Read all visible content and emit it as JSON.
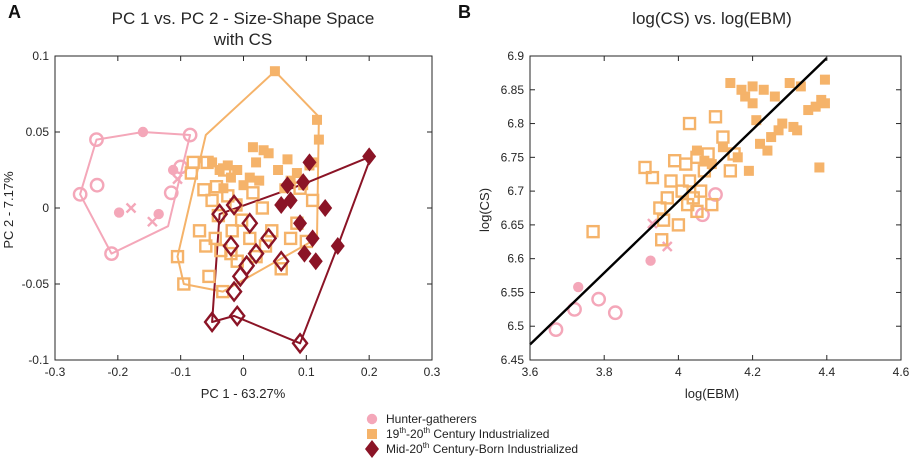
{
  "colors": {
    "hunter": "#F4A7B9",
    "industrial19": "#F5B36A",
    "mid20": "#8B1426",
    "regression": "#000000"
  },
  "legend": {
    "items": [
      {
        "key": "hunter",
        "marker": "circle",
        "text": "Hunter-gatherers"
      },
      {
        "key": "industrial19",
        "marker": "square",
        "text": "19th-20th Century Industrialized",
        "rich": [
          [
            "19"
          ],
          [
            "th",
            "sup"
          ],
          [
            "-20"
          ],
          [
            "th",
            "sup"
          ],
          [
            " Century Industrialized"
          ]
        ]
      },
      {
        "key": "mid20",
        "marker": "diamond",
        "text": "Mid-20th Century-Born Industrialized",
        "rich": [
          [
            "Mid-20"
          ],
          [
            "th",
            "sup"
          ],
          [
            " Century-Born Industrialized"
          ]
        ]
      }
    ]
  },
  "chart_data": [
    {
      "panel": "A",
      "type": "scatter",
      "title": "PC 1 vs. PC 2 - Size-Shape Space",
      "title_line2": "with CS",
      "xlabel": "PC 1 - 63.27%",
      "ylabel": "PC 2 - 7.17%",
      "xlim": [
        -0.3,
        0.3
      ],
      "ylim": [
        -0.1,
        0.1
      ],
      "xticks": [
        -0.3,
        -0.2,
        -0.1,
        0,
        0.1,
        0.2,
        0.3
      ],
      "xtick_labels": [
        "-0.3",
        "-0.2",
        "-0.1",
        "0",
        "0.1",
        "0.2",
        "0.3"
      ],
      "yticks": [
        -0.1,
        -0.05,
        0,
        0.05,
        0.1
      ],
      "ytick_labels": [
        "-0.1",
        "-0.05",
        "0",
        "0.05",
        "0.1"
      ],
      "hulls": [
        {
          "group": "hunter",
          "points": [
            [
              -0.26,
              0.009
            ],
            [
              -0.234,
              0.045
            ],
            [
              -0.16,
              0.05
            ],
            [
              -0.085,
              0.048
            ],
            [
              -0.12,
              -0.012
            ],
            [
              -0.21,
              -0.03
            ]
          ]
        },
        {
          "group": "industrial19",
          "points": [
            [
              -0.105,
              -0.032
            ],
            [
              -0.06,
              0.048
            ],
            [
              0.05,
              0.09
            ],
            [
              0.12,
              0.06
            ],
            [
              0.117,
              -0.02
            ],
            [
              -0.033,
              -0.055
            ],
            [
              -0.095,
              -0.05
            ]
          ]
        },
        {
          "group": "mid20",
          "points": [
            [
              -0.05,
              -0.075
            ],
            [
              -0.038,
              -0.004
            ],
            [
              0.097,
              0.016
            ],
            [
              0.203,
              0.034
            ],
            [
              0.15,
              -0.025
            ],
            [
              0.09,
              -0.089
            ],
            [
              -0.015,
              -0.071
            ]
          ]
        }
      ],
      "series": [
        {
          "name": "Hunter-gatherers",
          "group": "hunter",
          "marker": "circle",
          "open": [
            [
              -0.234,
              0.045
            ],
            [
              -0.233,
              0.015
            ],
            [
              -0.26,
              0.009
            ],
            [
              -0.21,
              -0.03
            ],
            [
              -0.085,
              0.048
            ],
            [
              -0.1,
              0.027
            ],
            [
              -0.115,
              0.01
            ]
          ],
          "filled": [
            [
              -0.16,
              0.05
            ],
            [
              -0.198,
              -0.003
            ],
            [
              -0.135,
              -0.004
            ],
            [
              -0.112,
              0.025
            ]
          ],
          "cross": [
            [
              -0.179,
              -0.0
            ],
            [
              -0.145,
              -0.009
            ],
            [
              -0.105,
              0.019
            ]
          ]
        },
        {
          "name": "19th-20th Century Industrialized",
          "group": "industrial19",
          "marker": "square",
          "open": [
            [
              -0.105,
              -0.032
            ],
            [
              -0.095,
              -0.05
            ],
            [
              -0.083,
              0.023
            ],
            [
              -0.08,
              0.03
            ],
            [
              -0.07,
              -0.015
            ],
            [
              -0.063,
              0.012
            ],
            [
              -0.06,
              -0.025
            ],
            [
              -0.058,
              0.03
            ],
            [
              -0.055,
              -0.045
            ],
            [
              -0.05,
              0.005
            ],
            [
              -0.045,
              -0.02
            ],
            [
              -0.043,
              0.014
            ],
            [
              -0.04,
              -0.005
            ],
            [
              -0.036,
              -0.028
            ],
            [
              -0.033,
              -0.055
            ],
            [
              -0.03,
              0.025
            ],
            [
              -0.025,
              0.008
            ],
            [
              -0.02,
              -0.03
            ],
            [
              -0.018,
              -0.015
            ],
            [
              -0.012,
              0.002
            ],
            [
              -0.01,
              -0.035
            ],
            [
              -0.003,
              -0.008
            ],
            [
              0.01,
              -0.02
            ],
            [
              0.015,
              0.01
            ],
            [
              0.02,
              -0.032
            ],
            [
              0.03,
              0.0
            ],
            [
              0.035,
              -0.025
            ],
            [
              0.045,
              -0.015
            ],
            [
              0.06,
              -0.04
            ],
            [
              0.075,
              -0.02
            ],
            [
              0.085,
              -0.01
            ],
            [
              0.09,
              0.013
            ],
            [
              0.1,
              -0.022
            ],
            [
              0.11,
              0.005
            ]
          ],
          "filled": [
            [
              -0.05,
              0.03
            ],
            [
              -0.038,
              0.025
            ],
            [
              -0.032,
              0.013
            ],
            [
              -0.025,
              0.028
            ],
            [
              -0.02,
              0.02
            ],
            [
              -0.01,
              0.025
            ],
            [
              0.0,
              0.015
            ],
            [
              0.01,
              0.02
            ],
            [
              0.02,
              0.03
            ],
            [
              0.025,
              0.018
            ],
            [
              0.032,
              0.038
            ],
            [
              0.04,
              0.036
            ],
            [
              0.05,
              0.09
            ],
            [
              0.055,
              0.025
            ],
            [
              0.07,
              0.032
            ],
            [
              0.075,
              0.018
            ],
            [
              0.085,
              0.023
            ],
            [
              0.095,
              0.015
            ],
            [
              0.105,
              0.028
            ],
            [
              0.11,
              0.03
            ],
            [
              0.117,
              0.058
            ],
            [
              0.12,
              0.045
            ],
            [
              0.065,
              0.013
            ],
            [
              0.015,
              0.04
            ]
          ]
        },
        {
          "name": "Mid-20th Century-Born Industrialized",
          "group": "mid20",
          "marker": "diamond",
          "open": [
            [
              -0.05,
              -0.075
            ],
            [
              -0.038,
              -0.004
            ],
            [
              -0.015,
              0.002
            ],
            [
              -0.02,
              -0.025
            ],
            [
              -0.005,
              -0.045
            ],
            [
              -0.015,
              -0.055
            ],
            [
              0.005,
              -0.038
            ],
            [
              0.01,
              -0.01
            ],
            [
              0.02,
              -0.03
            ],
            [
              0.04,
              -0.02
            ],
            [
              0.06,
              -0.035
            ],
            [
              0.09,
              -0.089
            ],
            [
              -0.01,
              -0.071
            ]
          ],
          "filled": [
            [
              0.06,
              0.002
            ],
            [
              0.075,
              0.005
            ],
            [
              0.09,
              -0.01
            ],
            [
              0.095,
              0.017
            ],
            [
              0.097,
              -0.03
            ],
            [
              0.11,
              -0.02
            ],
            [
              0.115,
              -0.035
            ],
            [
              0.15,
              -0.025
            ],
            [
              0.13,
              0.0
            ],
            [
              0.2,
              0.034
            ],
            [
              0.07,
              0.015
            ],
            [
              0.105,
              0.03
            ]
          ]
        }
      ]
    },
    {
      "panel": "B",
      "type": "scatter",
      "title": "log(CS) vs. log(EBM)",
      "xlabel": "log(EBM)",
      "ylabel": "log(CS)",
      "xlim": [
        3.6,
        4.6
      ],
      "ylim": [
        6.45,
        6.9
      ],
      "xticks": [
        3.6,
        3.8,
        4.0,
        4.2,
        4.4,
        4.6
      ],
      "xtick_labels": [
        "3.6",
        "3.8",
        "4",
        "4.2",
        "4.4",
        "4.6"
      ],
      "yticks": [
        6.45,
        6.5,
        6.55,
        6.6,
        6.65,
        6.7,
        6.75,
        6.8,
        6.85,
        6.9
      ],
      "ytick_labels": [
        "6.45",
        "6.5",
        "6.55",
        "6.6",
        "6.65",
        "6.7",
        "6.75",
        "6.8",
        "6.85",
        "6.9"
      ],
      "regression_line": {
        "x": [
          3.6,
          4.4
        ],
        "y": [
          6.473,
          6.897
        ]
      },
      "series": [
        {
          "name": "Hunter-gatherers",
          "group": "hunter",
          "marker": "circle",
          "open": [
            [
              3.67,
              6.495
            ],
            [
              3.72,
              6.525
            ],
            [
              3.785,
              6.54
            ],
            [
              3.83,
              6.52
            ],
            [
              4.065,
              6.665
            ],
            [
              4.1,
              6.695
            ]
          ],
          "filled": [
            [
              3.73,
              6.558
            ],
            [
              3.925,
              6.597
            ]
          ],
          "cross": [
            [
              3.93,
              6.652
            ],
            [
              3.97,
              6.618
            ]
          ]
        },
        {
          "name": "19th-20th Century Industrialized",
          "group": "industrial19",
          "marker": "square",
          "open": [
            [
              3.77,
              6.64
            ],
            [
              3.91,
              6.735
            ],
            [
              3.93,
              6.72
            ],
            [
              3.95,
              6.675
            ],
            [
              3.955,
              6.628
            ],
            [
              3.96,
              6.657
            ],
            [
              3.97,
              6.69
            ],
            [
              3.98,
              6.715
            ],
            [
              3.99,
              6.745
            ],
            [
              4.0,
              6.65
            ],
            [
              4.01,
              6.7
            ],
            [
              4.02,
              6.74
            ],
            [
              4.03,
              6.715
            ],
            [
              4.03,
              6.8
            ],
            [
              4.04,
              6.69
            ],
            [
              4.05,
              6.75
            ],
            [
              4.06,
              6.7
            ],
            [
              4.07,
              6.73
            ],
            [
              4.08,
              6.755
            ],
            [
              4.09,
              6.68
            ],
            [
              4.1,
              6.81
            ],
            [
              4.12,
              6.78
            ],
            [
              4.14,
              6.73
            ],
            [
              4.15,
              6.755
            ],
            [
              4.05,
              6.67
            ],
            [
              4.025,
              6.68
            ]
          ],
          "filled": [
            [
              4.05,
              6.76
            ],
            [
              4.07,
              6.745
            ],
            [
              4.09,
              6.74
            ],
            [
              4.12,
              6.765
            ],
            [
              4.14,
              6.86
            ],
            [
              4.16,
              6.75
            ],
            [
              4.18,
              6.84
            ],
            [
              4.19,
              6.73
            ],
            [
              4.2,
              6.83
            ],
            [
              4.21,
              6.805
            ],
            [
              4.22,
              6.77
            ],
            [
              4.23,
              6.85
            ],
            [
              4.24,
              6.76
            ],
            [
              4.25,
              6.78
            ],
            [
              4.26,
              6.84
            ],
            [
              4.27,
              6.79
            ],
            [
              4.28,
              6.8
            ],
            [
              4.3,
              6.86
            ],
            [
              4.31,
              6.795
            ],
            [
              4.32,
              6.79
            ],
            [
              4.33,
              6.855
            ],
            [
              4.35,
              6.82
            ],
            [
              4.37,
              6.825
            ],
            [
              4.38,
              6.735
            ],
            [
              4.385,
              6.835
            ],
            [
              4.395,
              6.865
            ],
            [
              4.395,
              6.83
            ],
            [
              4.2,
              6.855
            ],
            [
              4.17,
              6.85
            ]
          ]
        }
      ]
    }
  ]
}
